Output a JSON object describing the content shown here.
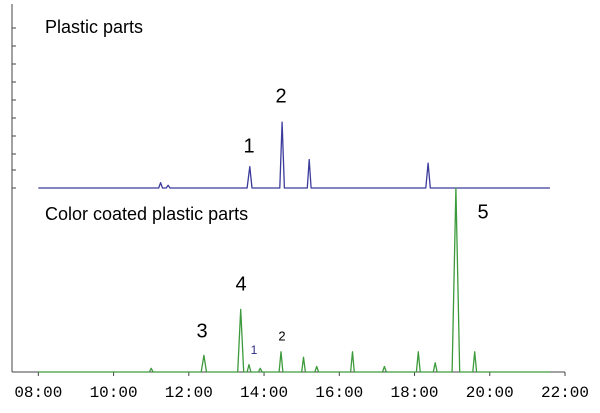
{
  "chart_data": [
    {
      "type": "line",
      "title": "Plastic parts",
      "color": "#3b3b9c",
      "x": [
        8,
        11.2,
        11.25,
        11.3,
        11.4,
        11.45,
        11.5,
        13.55,
        13.62,
        13.68,
        14.42,
        14.48,
        14.54,
        15.15,
        15.2,
        15.25,
        18.3,
        18.36,
        18.42,
        21.6
      ],
      "values": [
        0,
        0,
        3,
        0,
        0,
        1.5,
        0,
        0,
        12,
        0,
        0,
        37,
        0,
        0,
        16,
        0,
        0,
        14,
        0,
        0
      ],
      "xlim": [
        7.3,
        22
      ],
      "ylim": [
        0,
        100
      ],
      "annotations": [
        "1",
        "2"
      ]
    },
    {
      "type": "line",
      "title": "Color coated plastic parts",
      "color": "#3c9a3c",
      "x": [
        8,
        10.95,
        11.0,
        11.05,
        12.33,
        12.4,
        12.47,
        13.3,
        13.38,
        13.46,
        13.55,
        13.6,
        13.65,
        13.85,
        13.9,
        13.95,
        14.4,
        14.45,
        14.5,
        15.0,
        15.05,
        15.1,
        15.35,
        15.4,
        15.45,
        16.3,
        16.35,
        16.4,
        17.15,
        17.2,
        17.25,
        18.05,
        18.1,
        18.15,
        18.5,
        18.55,
        18.6,
        19.0,
        19.1,
        19.2,
        19.55,
        19.6,
        19.65,
        21.6
      ],
      "values": [
        0,
        0,
        2,
        0,
        0,
        9,
        0,
        0,
        34,
        0,
        0,
        4,
        0,
        0,
        2,
        0,
        0,
        11,
        0,
        0,
        8,
        0,
        0,
        3,
        0,
        0,
        11,
        0,
        0,
        3,
        0,
        0,
        11,
        0,
        0,
        5,
        0,
        0,
        100,
        0,
        0,
        11,
        0,
        0
      ],
      "xlim": [
        7.3,
        22
      ],
      "ylim": [
        0,
        100
      ],
      "xticks": [
        {
          "value": 8,
          "label": "08:00"
        },
        {
          "value": 10,
          "label": "10:00"
        },
        {
          "value": 12,
          "label": "12:00"
        },
        {
          "value": 14,
          "label": "14:00"
        },
        {
          "value": 16,
          "label": "16:00"
        },
        {
          "value": 18,
          "label": "18:00"
        },
        {
          "value": 20,
          "label": "20:00"
        },
        {
          "value": 22,
          "label": "22:00"
        }
      ],
      "annotations": [
        "3",
        "4",
        "1",
        "2",
        "5"
      ]
    }
  ]
}
